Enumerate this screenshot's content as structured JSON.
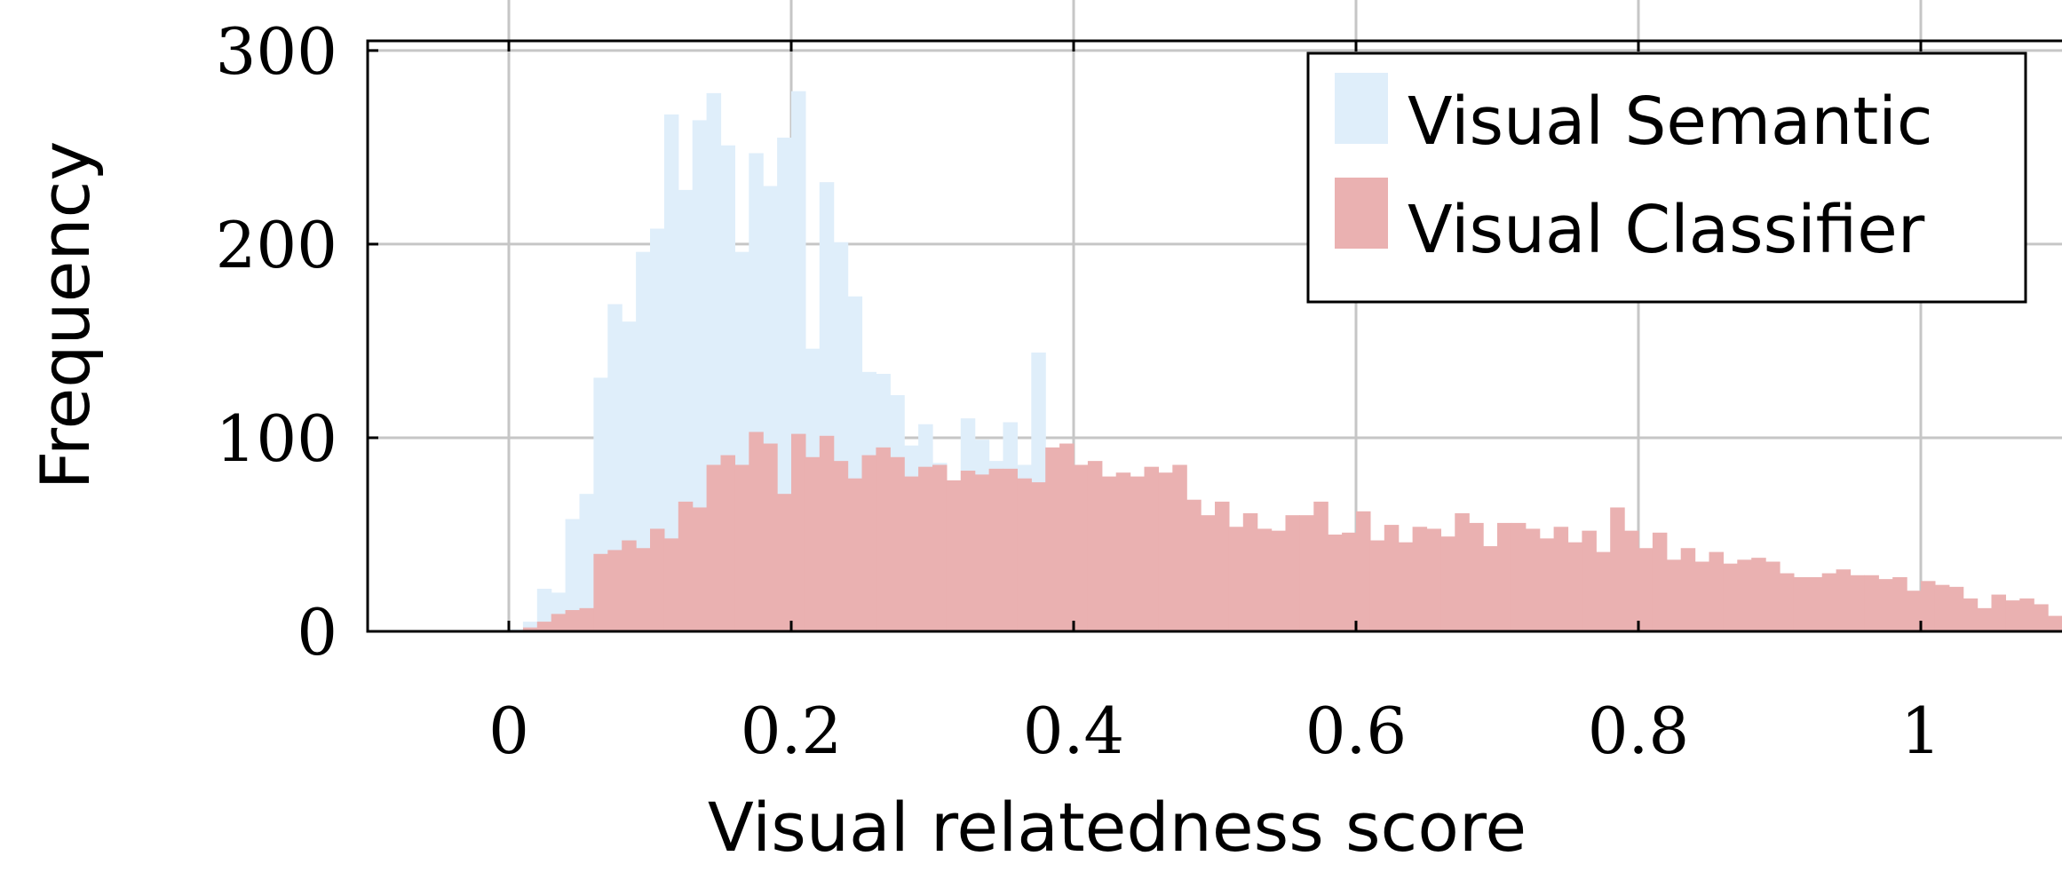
{
  "chart_data": {
    "type": "histogram",
    "title": "",
    "xlabel": "Visual relatedness score",
    "ylabel": "Frequency",
    "xlim": [
      -0.1,
      1.1
    ],
    "ylim": [
      0,
      305
    ],
    "bin_width": 0.01,
    "grid": true,
    "legend_position": "top-right",
    "x_ticks": [
      {
        "value": 0,
        "label": "0"
      },
      {
        "value": 0.2,
        "label": "0.2"
      },
      {
        "value": 0.4,
        "label": "0.4"
      },
      {
        "value": 0.6,
        "label": "0.6"
      },
      {
        "value": 0.8,
        "label": "0.8"
      },
      {
        "value": 1,
        "label": "1"
      }
    ],
    "y_ticks": [
      {
        "value": 0,
        "label": "0"
      },
      {
        "value": 100,
        "label": "100"
      },
      {
        "value": 200,
        "label": "200"
      },
      {
        "value": 300,
        "label": "300"
      }
    ],
    "series": [
      {
        "name": "Visual Semantic",
        "color": "#dfeefa",
        "bin_start": 0,
        "values": [
          1,
          5,
          22,
          20,
          58,
          71,
          131,
          169,
          160,
          196,
          208,
          267,
          228,
          264,
          278,
          251,
          196,
          247,
          230,
          255,
          279,
          146,
          232,
          201,
          173,
          134,
          133,
          122,
          96,
          107,
          87,
          77,
          110,
          99,
          88,
          108,
          86,
          144,
          21,
          7,
          5,
          4,
          4,
          3,
          3,
          2,
          3,
          2,
          2,
          2,
          1,
          1,
          2,
          1,
          1,
          1,
          1,
          1,
          1,
          1,
          1,
          1,
          1,
          1,
          1,
          1,
          1,
          1,
          1,
          1,
          1,
          1,
          1,
          1,
          1,
          1,
          1,
          1,
          1,
          1,
          1,
          1,
          1,
          1,
          1,
          1,
          1,
          1,
          1,
          1,
          1,
          1,
          1,
          1,
          1,
          1,
          1,
          1,
          1,
          1
        ]
      },
      {
        "name": "Visual Classifier",
        "color": "#eab1b1",
        "bin_start": 0,
        "values": [
          0,
          2,
          5,
          9,
          11,
          12,
          40,
          42,
          47,
          43,
          53,
          48,
          67,
          64,
          86,
          91,
          86,
          103,
          97,
          71,
          102,
          90,
          101,
          88,
          79,
          91,
          95,
          90,
          80,
          85,
          86,
          78,
          83,
          81,
          84,
          84,
          79,
          77,
          95,
          97,
          86,
          88,
          80,
          82,
          80,
          85,
          82,
          86,
          68,
          60,
          67,
          54,
          61,
          53,
          52,
          60,
          60,
          67,
          50,
          51,
          62,
          47,
          55,
          46,
          54,
          53,
          49,
          61,
          56,
          44,
          56,
          56,
          53,
          48,
          54,
          46,
          52,
          41,
          64,
          52,
          43,
          51,
          37,
          43,
          36,
          41,
          35,
          37,
          38,
          36,
          30,
          28,
          28,
          30,
          32,
          29,
          29,
          27,
          28,
          21,
          26,
          24,
          23,
          17,
          12,
          19,
          16,
          17,
          14,
          8,
          6,
          5,
          8,
          6,
          4,
          2,
          2,
          1,
          1,
          0,
          0
        ]
      }
    ]
  }
}
